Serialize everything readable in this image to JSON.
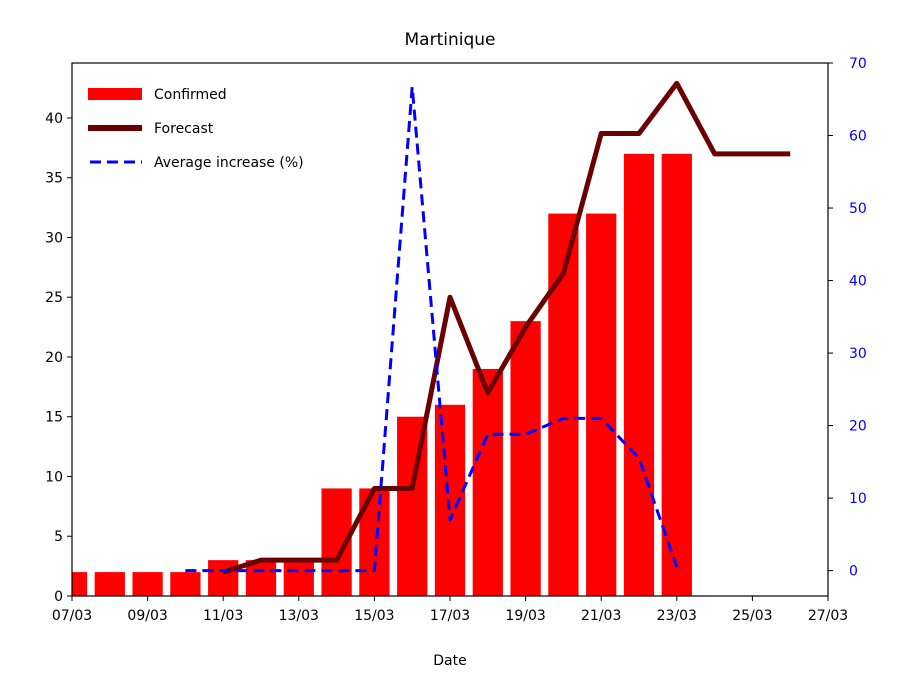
{
  "chart_data": {
    "type": "bar",
    "title": "Martinique",
    "xlabel": "Date",
    "ylabel": "",
    "ylabel_right": "",
    "x_ticks": [
      "07/03",
      "09/03",
      "11/03",
      "13/03",
      "15/03",
      "17/03",
      "19/03",
      "21/03",
      "23/03",
      "25/03",
      "27/03"
    ],
    "y_ticks": [
      0,
      5,
      10,
      15,
      20,
      25,
      30,
      35,
      40
    ],
    "y2_ticks": [
      0,
      10,
      20,
      30,
      40,
      50,
      60,
      70
    ],
    "ylim": [
      0,
      44.6
    ],
    "y2lim": [
      -3.5,
      70
    ],
    "xlim_days": [
      7,
      27
    ],
    "legend": [
      "Confirmed",
      "Forecast",
      "Average increase (%)"
    ],
    "legend_placement": "top-left",
    "colors": {
      "confirmed": "#ff0000",
      "forecast": "#6b0000",
      "average": "#0000ff",
      "right_axis": "#0000ff"
    },
    "series": [
      {
        "name": "Confirmed",
        "type": "bar",
        "x": [
          7,
          8,
          9,
          10,
          11,
          12,
          13,
          14,
          15,
          16,
          17,
          18,
          19,
          20,
          21,
          22,
          23
        ],
        "values": [
          2,
          2,
          2,
          2,
          3,
          3,
          3,
          9,
          9,
          15,
          16,
          19,
          23,
          32,
          32,
          37,
          37
        ]
      },
      {
        "name": "Forecast",
        "type": "line",
        "x": [
          11,
          12,
          13,
          14,
          15,
          16,
          17,
          18,
          19,
          20,
          21,
          22,
          23,
          24,
          25,
          26
        ],
        "values": [
          2,
          3,
          3,
          3,
          9,
          9,
          25,
          17,
          22.5,
          27,
          38.7,
          38.7,
          42.9,
          37,
          37,
          37
        ]
      },
      {
        "name": "Average increase (%)",
        "type": "line",
        "axis": "right",
        "x": [
          10,
          11,
          12,
          13,
          14,
          15,
          16,
          17,
          18,
          19,
          20,
          21,
          22,
          23
        ],
        "values": [
          0,
          0,
          0,
          0,
          0,
          0,
          66.7,
          7,
          18.8,
          18.8,
          21,
          21,
          15.5,
          0.5
        ]
      }
    ]
  }
}
